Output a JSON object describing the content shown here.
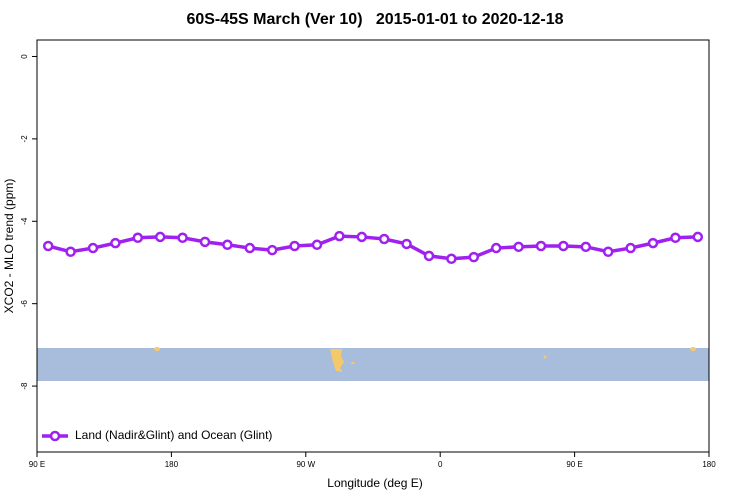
{
  "chart_data": {
    "type": "line",
    "title": "60S-45S March (Ver 10)   2015-01-01 to 2020-12-18",
    "x_label": "Longitude (deg E)",
    "y_label": "XCO2 - MLO trend (ppm)",
    "x": [
      97.5,
      112.5,
      127.5,
      142.5,
      157.5,
      172.5,
      187.5,
      202.5,
      217.5,
      232.5,
      247.5,
      262.5,
      277.5,
      292.5,
      307.5,
      322.5,
      337.5,
      352.5,
      367.5,
      382.5,
      397.5,
      412.5,
      427.5,
      442.5,
      457.5,
      472.5,
      487.5,
      502.5,
      517.5,
      532.5
    ],
    "series": [
      {
        "name": "Land (Nadir&Glint) and Ocean (Glint)",
        "color": "#a020f0",
        "values": [
          -4.6,
          -4.74,
          -4.65,
          -4.53,
          -4.4,
          -4.38,
          -4.4,
          -4.5,
          -4.57,
          -4.65,
          -4.7,
          -4.6,
          -4.57,
          -4.36,
          -4.38,
          -4.43,
          -4.55,
          -4.84,
          -4.91,
          -4.87,
          -4.65,
          -4.62,
          -4.6,
          -4.6,
          -4.62,
          -4.74,
          -4.65,
          -4.53,
          -4.4,
          -4.38
        ]
      }
    ],
    "xlim": [
      90,
      540
    ],
    "xticks": [
      {
        "value": 90,
        "label": "90 E"
      },
      180,
      {
        "value": 270,
        "label": "90 W"
      },
      {
        "value": 360,
        "label": "0"
      },
      {
        "value": 450,
        "label": "90 E"
      },
      {
        "value": 540,
        "label": "180"
      }
    ],
    "ylim": [
      -9.6,
      0.4
    ],
    "yticks": [
      0,
      -2,
      -4,
      -6,
      -8
    ],
    "legend": "bottom-left"
  }
}
